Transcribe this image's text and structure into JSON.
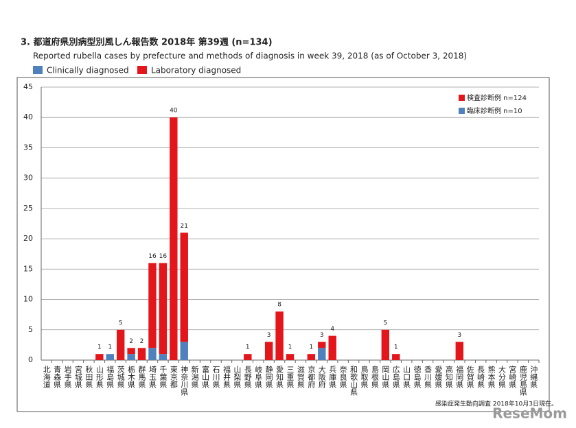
{
  "chart_data": {
    "type": "stacked-bar",
    "title": "3. 都道府県別病型別風しん報告数  2018年 第39週 (n=134)",
    "subtitle": "Reported rubella cases by prefecture and methods of diagnosis in week 39, 2018 (as of October 3, 2018)",
    "categories": [
      "北海道",
      "青森県",
      "岩手県",
      "宮城県",
      "秋田県",
      "山形県",
      "福島県",
      "茨城県",
      "栃木県",
      "群馬県",
      "埼玉県",
      "千葉県",
      "東京都",
      "神奈川県",
      "新潟県",
      "富山県",
      "石川県",
      "福井県",
      "山梨県",
      "長野県",
      "岐阜県",
      "静岡県",
      "愛知県",
      "三重県",
      "滋賀県",
      "京都府",
      "大阪府",
      "兵庫県",
      "奈良県",
      "和歌山県",
      "鳥取県",
      "島根県",
      "岡山県",
      "広島県",
      "山口県",
      "徳島県",
      "香川県",
      "愛媛県",
      "高知県",
      "福岡県",
      "佐賀県",
      "長崎県",
      "熊本県",
      "大分県",
      "宮崎県",
      "鹿児島県",
      "沖縄県"
    ],
    "series": [
      {
        "name": "Clinically diagnosed",
        "color": "#4f81bd",
        "values": [
          0,
          0,
          0,
          0,
          0,
          0,
          1,
          0,
          1,
          0,
          2,
          1,
          0,
          3,
          0,
          0,
          0,
          0,
          0,
          0,
          0,
          0,
          0,
          0,
          0,
          0,
          2,
          0,
          0,
          0,
          0,
          0,
          0,
          0,
          0,
          0,
          0,
          0,
          0,
          0,
          0,
          0,
          0,
          0,
          0,
          0,
          0
        ]
      },
      {
        "name": "Laboratory diagnosed",
        "color": "#e3161c",
        "values": [
          0,
          0,
          0,
          0,
          0,
          1,
          0,
          5,
          1,
          2,
          14,
          15,
          40,
          18,
          0,
          0,
          0,
          0,
          0,
          1,
          0,
          3,
          8,
          1,
          0,
          1,
          1,
          4,
          0,
          0,
          0,
          0,
          5,
          1,
          0,
          0,
          0,
          0,
          0,
          3,
          0,
          0,
          0,
          0,
          0,
          0,
          0
        ]
      }
    ],
    "total_labels": [
      null,
      null,
      null,
      null,
      null,
      1,
      1,
      5,
      2,
      2,
      16,
      16,
      40,
      21,
      null,
      null,
      null,
      null,
      null,
      1,
      null,
      3,
      8,
      1,
      null,
      1,
      3,
      4,
      null,
      null,
      null,
      null,
      5,
      1,
      null,
      null,
      null,
      null,
      null,
      3,
      null,
      null,
      null,
      null,
      null,
      null,
      null
    ],
    "inner_legend": [
      "臨床診断例 n=10",
      "検査診断例 n=124"
    ],
    "ylim": [
      0,
      45
    ],
    "yticks": [
      0,
      5,
      10,
      15,
      20,
      25,
      30,
      35,
      40,
      45
    ],
    "grid": true,
    "footnote": "感染症発生動向調査 2018年10月3日現在。",
    "watermark": "ReseMom"
  }
}
